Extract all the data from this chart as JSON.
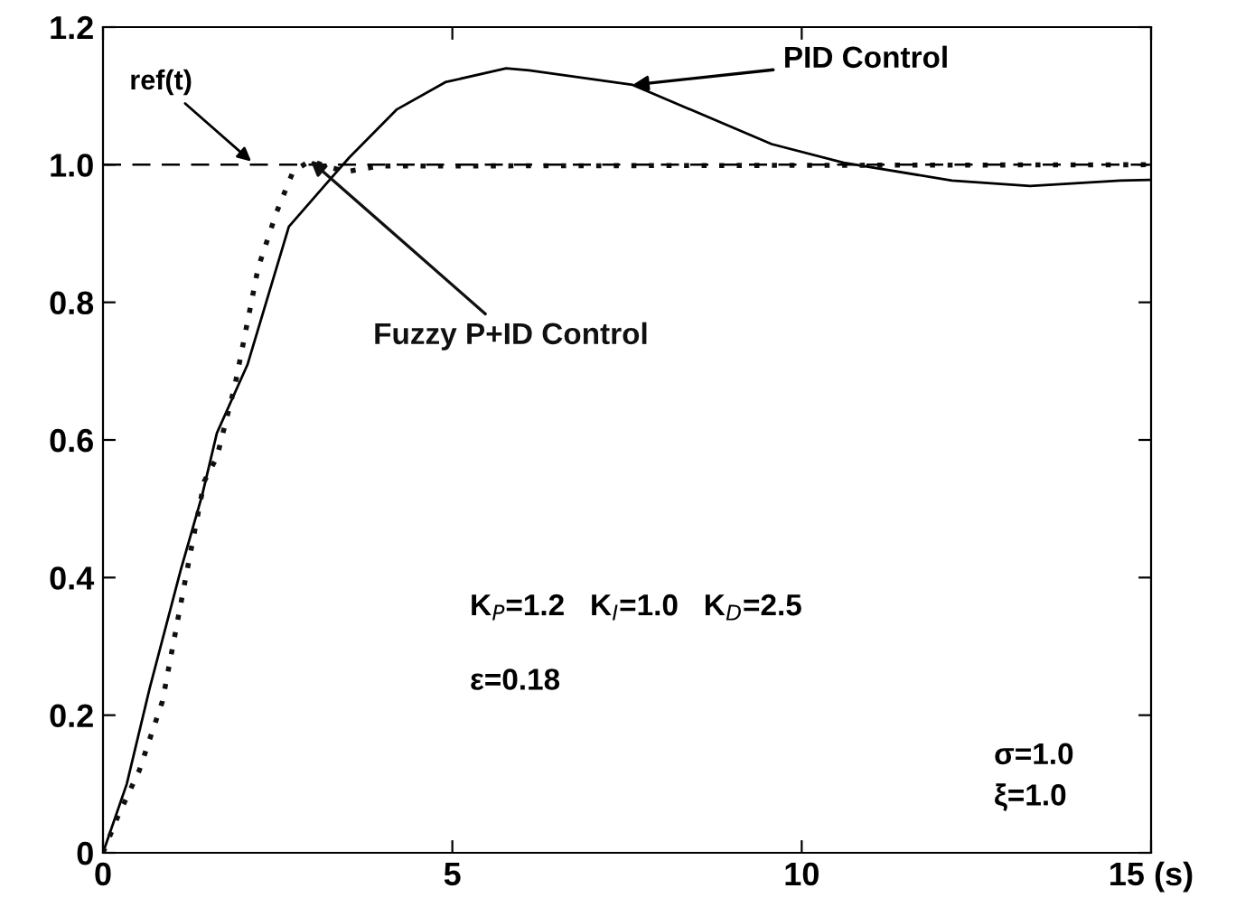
{
  "chart_data": {
    "type": "line",
    "xlim": [
      0,
      15
    ],
    "ylim": [
      0,
      1.2
    ],
    "xticks": [
      0,
      5,
      10,
      {
        "value": 15,
        "label": "15 (s)"
      }
    ],
    "yticks": [
      0,
      0.2,
      0.4,
      0.6,
      0.8,
      {
        "value": 1,
        "label": "1.0"
      },
      1.2
    ],
    "grid": false,
    "series": [
      {
        "name": "PID Control",
        "color": "#000000",
        "line_style": "solid",
        "x": [
          0,
          0.34,
          0.67,
          1.11,
          1.42,
          1.63,
          2.07,
          2.66,
          3.26,
          3.52,
          4.2,
          4.9,
          5.77,
          6.1,
          7.58,
          9.57,
          10.6,
          12.15,
          13.27,
          14.56,
          15
        ],
        "values": [
          0,
          0.1,
          0.24,
          0.41,
          0.52,
          0.61,
          0.71,
          0.91,
          0.98,
          1.01,
          1.08,
          1.12,
          1.14,
          1.137,
          1.116,
          1.03,
          1.003,
          0.977,
          0.969,
          0.977,
          0.978
        ]
      },
      {
        "name": "Fuzzy P+ID Control",
        "color": "#101010",
        "line_style": "dotted",
        "x": [
          0,
          0.2,
          0.52,
          0.85,
          1.24,
          1.45,
          1.63,
          1.89,
          2.22,
          2.48,
          2.72,
          2.97,
          3.18,
          3.49,
          3.96,
          15
        ],
        "values": [
          0,
          0.05,
          0.12,
          0.22,
          0.43,
          0.54,
          0.575,
          0.68,
          0.85,
          0.93,
          0.99,
          1.006,
          0.998,
          0.99,
          0.998,
          1.0
        ]
      }
    ],
    "ref_lines": [
      {
        "axis": "y",
        "value": 1.0,
        "label": "ref(t)",
        "color": "#000000",
        "line_style": "dashed"
      }
    ],
    "annotations": [
      "K$_{P}$=1.2   K$_{I}$=1.0   K$_{D}$=2.5",
      "ε=0.18",
      "σ=1.0\nξ=1.0"
    ]
  }
}
